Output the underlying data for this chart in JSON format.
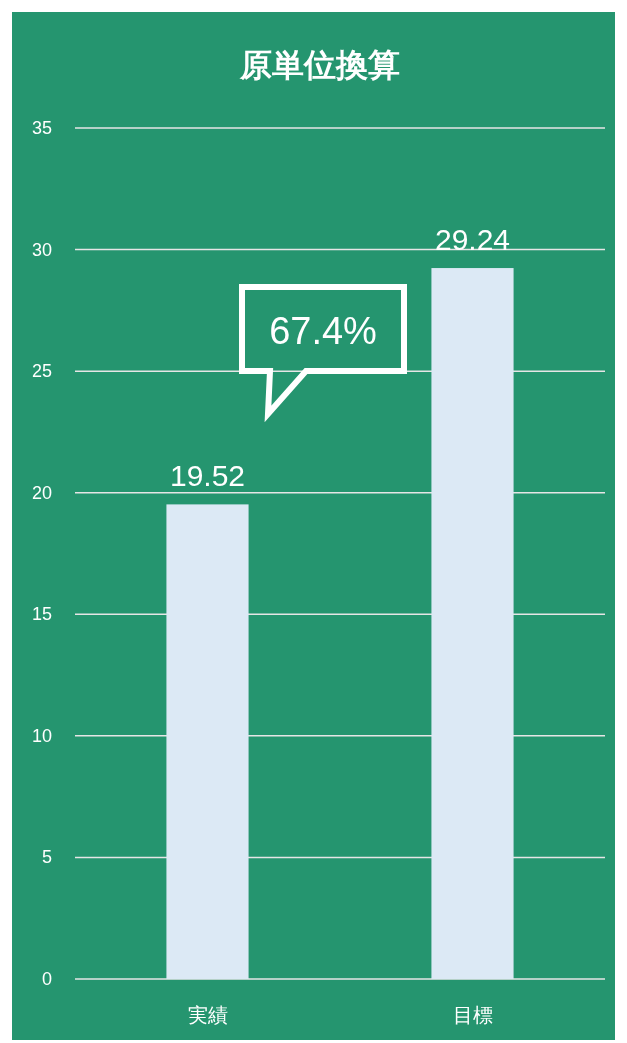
{
  "chart_data": {
    "type": "bar",
    "title": "原単位換算",
    "categories": [
      "実績",
      "目標"
    ],
    "values": [
      19.52,
      29.24
    ],
    "color": "#dce9f5",
    "data_labels": true,
    "ylim": [
      0,
      35
    ],
    "yticks": [
      0,
      5,
      10,
      15,
      20,
      25,
      30,
      35
    ],
    "grid": "y",
    "annotations": [
      "67.4%"
    ]
  }
}
